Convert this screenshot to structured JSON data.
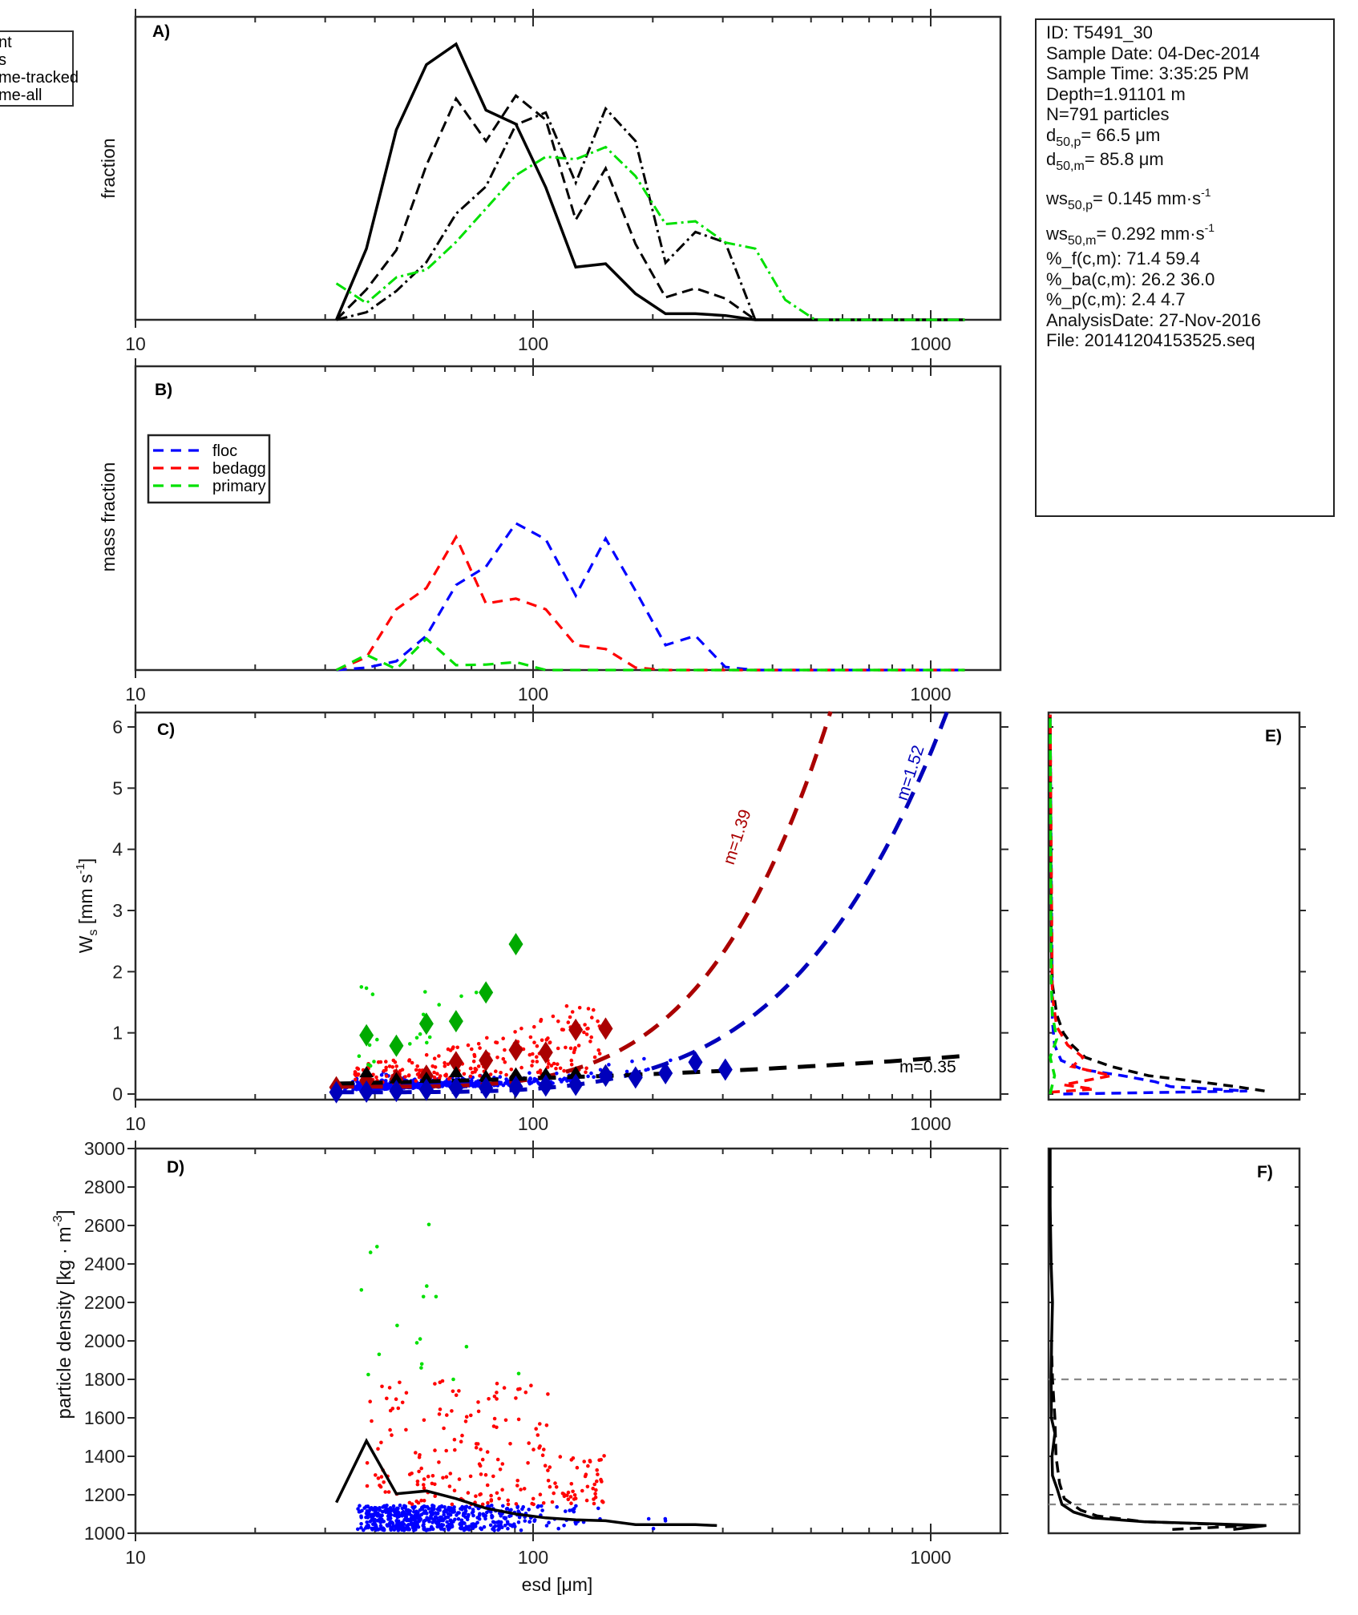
{
  "info_box": {
    "id": "ID: T5491_30",
    "sample_date": "Sample Date: 04-Dec-2014",
    "sample_time": "Sample Time:  3:35:25 PM",
    "depth": "Depth=1.91101 m",
    "n": "N=791 particles",
    "d50p_label": "d",
    "d50p_sub": "50,p",
    "d50p_value": "=  66.5 μm",
    "d50m_label": "d",
    "d50m_sub": "50,m",
    "d50m_value": "=  85.8 μm",
    "ws50p_label": "ws",
    "ws50p_sub": "50,p",
    "ws50p_value": "= 0.145 mm·s",
    "ws50p_sup": "-1",
    "ws50m_label": "ws",
    "ws50m_sub": "50,m",
    "ws50m_value": "= 0.292 mm·s",
    "ws50m_sup": "-1",
    "pct_f": "%_f(c,m): 71.4 59.4",
    "pct_ba": "%_ba(c,m): 26.2 36.0",
    "pct_p": "%_p(c,m): 2.4 4.7",
    "analysis_date": "AnalysisDate: 27-Nov-2016",
    "file": "File: 20141204153525.seq"
  },
  "legend_left": {
    "entries": [
      "nt",
      "s",
      "me-tracked",
      "me-all"
    ]
  },
  "chart_data": [
    {
      "panel": "A)",
      "type": "line",
      "xscale": "log",
      "xlim": [
        10,
        1500
      ],
      "ylim": [
        0,
        1
      ],
      "xlabel": "",
      "ylabel": "fraction",
      "xticklabels": [
        "10",
        "100",
        "1000"
      ],
      "x": [
        32,
        38.1,
        45.3,
        53.9,
        64,
        76.1,
        90.5,
        107.6,
        128,
        152.2,
        181,
        215.3,
        256,
        304.4,
        362,
        430.5,
        512,
        609,
        724,
        861,
        1024,
        1218
      ],
      "series": [
        {
          "name": "nt",
          "style": "solid",
          "color": "#000000",
          "values": [
            0,
            0.235,
            0.627,
            0.842,
            0.91,
            0.692,
            0.646,
            0.437,
            0.174,
            0.185,
            0.086,
            0.02,
            0.02,
            0.014,
            0,
            0,
            0,
            0,
            0,
            0,
            0,
            0
          ]
        },
        {
          "name": "s",
          "style": "dashed",
          "color": "#000000",
          "values": [
            0,
            0.1,
            0.23,
            0.51,
            0.73,
            0.59,
            0.74,
            0.66,
            0.33,
            0.5,
            0.25,
            0.074,
            0.104,
            0.07,
            0,
            0,
            0,
            0,
            0,
            0,
            0,
            0
          ]
        },
        {
          "name": "me-tracked",
          "style": "dashdot",
          "color": "#000000",
          "values": [
            0,
            0.025,
            0.095,
            0.19,
            0.35,
            0.44,
            0.644,
            0.684,
            0.452,
            0.697,
            0.59,
            0.188,
            0.29,
            0.255,
            0,
            0,
            0,
            0,
            0,
            0,
            0,
            0
          ]
        },
        {
          "name": "me-all",
          "style": "dashdot",
          "color": "#00e000",
          "values": [
            0.12,
            0.055,
            0.14,
            0.165,
            0.257,
            0.367,
            0.477,
            0.538,
            0.53,
            0.57,
            0.474,
            0.316,
            0.325,
            0.255,
            0.235,
            0.066,
            0,
            0,
            0,
            0,
            0,
            0
          ]
        }
      ]
    },
    {
      "panel": "B)",
      "type": "line",
      "xscale": "log",
      "xlim": [
        10,
        1500
      ],
      "ylim": [
        0,
        1
      ],
      "ylabel": "mass fraction",
      "xticklabels": [
        "10",
        "100",
        "1000"
      ],
      "legend": {
        "position": "top-left",
        "entries": [
          "floc",
          "bedagg",
          "primary"
        ]
      },
      "x": [
        32,
        38.1,
        45.3,
        53.9,
        64,
        76.1,
        90.5,
        107.6,
        128,
        152.2,
        181,
        215.3,
        256,
        304.4,
        362,
        430.5,
        512,
        609,
        724,
        861,
        1024,
        1218
      ],
      "series": [
        {
          "name": "floc",
          "style": "dashed",
          "color": "#0000ff",
          "values": [
            0,
            0.008,
            0.029,
            0.113,
            0.28,
            0.34,
            0.483,
            0.43,
            0.245,
            0.433,
            0.261,
            0.082,
            0.113,
            0.01,
            0,
            0,
            0,
            0,
            0,
            0,
            0,
            0
          ]
        },
        {
          "name": "bedagg",
          "style": "dashed",
          "color": "#ff0000",
          "values": [
            0,
            0.042,
            0.2,
            0.27,
            0.438,
            0.219,
            0.235,
            0.2,
            0.082,
            0.069,
            0.008,
            0,
            0,
            0,
            0,
            0,
            0,
            0,
            0,
            0,
            0,
            0
          ]
        },
        {
          "name": "primary",
          "style": "dashed",
          "color": "#00e000",
          "values": [
            0,
            0.05,
            0.003,
            0.103,
            0.016,
            0.018,
            0.026,
            0,
            0,
            0,
            0,
            0,
            0,
            0,
            0,
            0,
            0,
            0,
            0,
            0,
            0,
            0
          ]
        }
      ]
    },
    {
      "panel": "C)",
      "type": "scatter",
      "xscale": "log",
      "xlim": [
        10,
        1500
      ],
      "ylim": [
        -0.12,
        6.25
      ],
      "ylabel": "W_s [mm s^-1]",
      "ylabel_main": "W",
      "ylabel_sub": "s",
      "ylabel_rest": " [mm s",
      "ylabel_sup": "-1",
      "ylabel_end": "]",
      "yticks": [
        0,
        1,
        2,
        3,
        4,
        5,
        6
      ],
      "xticklabels": [
        "10",
        "100",
        "1000"
      ],
      "binned": [
        {
          "name": "primary-median",
          "color": "#00aa00",
          "x": [
            38.1,
            45.3,
            53.9,
            64,
            76.1,
            90.5
          ],
          "y": [
            0.96,
            0.79,
            1.15,
            1.19,
            1.66,
            2.45
          ]
        },
        {
          "name": "bedagg-median",
          "color": "#aa0000",
          "x": [
            32,
            38.1,
            45.3,
            53.9,
            64,
            76.1,
            90.5,
            107.6,
            128,
            152.2
          ],
          "y": [
            0.11,
            0.22,
            0.24,
            0.3,
            0.52,
            0.55,
            0.72,
            0.68,
            1.05,
            1.07
          ]
        },
        {
          "name": "all-median",
          "color": "#000000",
          "x": [
            38.1,
            45.3,
            53.9,
            64,
            76.1,
            90.5,
            107.6,
            128,
            152.2
          ],
          "y": [
            0.3,
            0.2,
            0.21,
            0.3,
            0.24,
            0.28,
            0.28,
            0.3,
            0.33
          ]
        },
        {
          "name": "floc-median",
          "color": "#0000bb",
          "x": [
            32,
            38.1,
            45.3,
            53.9,
            64,
            76.1,
            90.5,
            107.6,
            128,
            152.2,
            181,
            215.3,
            256,
            304.4
          ],
          "y": [
            0.03,
            0.04,
            0.05,
            0.07,
            0.1,
            0.1,
            0.12,
            0.14,
            0.15,
            0.3,
            0.27,
            0.34,
            0.52,
            0.4
          ]
        }
      ],
      "fits": [
        {
          "name": "bedagg-fit",
          "label": "m=1.39",
          "color": "#aa0000",
          "x0": 32,
          "x1": 560,
          "y0": 0.12,
          "y1": 6.25
        },
        {
          "name": "floc-fit",
          "label": "m=1.52",
          "color": "#0000bb",
          "x0": 32,
          "x1": 1100,
          "y0": 0.03,
          "y1": 6.25
        },
        {
          "name": "all-fit",
          "label": "m=0.35",
          "color": "#000000",
          "x0": 32,
          "x1": 1250,
          "y0": 0.17,
          "y1": 0.63
        }
      ],
      "scatter_counts": {
        "floc": 560,
        "bedagg": 210,
        "primary": 21
      }
    },
    {
      "panel": "D)",
      "type": "scatter",
      "xscale": "log",
      "xlim": [
        10,
        1500
      ],
      "ylim": [
        1000,
        3000
      ],
      "xlabel": "esd [μm]",
      "ylabel": "particle density [kg · m^-3]",
      "ylabel_text": "particle density [kg · m",
      "ylabel_sup": "-3",
      "ylabel_end": "]",
      "yticks": [
        1000,
        1200,
        1400,
        1600,
        1800,
        2000,
        2200,
        2400,
        2600,
        2800,
        3000
      ],
      "xticklabels": [
        "10",
        "100",
        "1000"
      ],
      "median_line": {
        "x": [
          32,
          38.1,
          45.3,
          53.9,
          64,
          76.1,
          90.5,
          107.6,
          128,
          152.2,
          181,
          215.3,
          256,
          290
        ],
        "y": [
          1160,
          1480,
          1205,
          1220,
          1180,
          1130,
          1100,
          1080,
          1070,
          1065,
          1045,
          1045,
          1045,
          1040
        ]
      },
      "primary_points": [
        [
          37,
          2265
        ],
        [
          39,
          2460
        ],
        [
          40.5,
          2490
        ],
        [
          38.5,
          1825
        ],
        [
          41,
          1930
        ],
        [
          45.5,
          2080
        ],
        [
          51,
          1990
        ],
        [
          53,
          2230
        ],
        [
          54,
          2285
        ],
        [
          52,
          2010
        ],
        [
          52.5,
          1880
        ],
        [
          52.3,
          1860
        ],
        [
          57,
          2230
        ],
        [
          68,
          1970
        ],
        [
          63,
          1800
        ],
        [
          54.7,
          2605
        ],
        [
          92,
          1830
        ]
      ]
    },
    {
      "panel": "E)",
      "type": "line",
      "ylim": [
        -0.12,
        6.25
      ],
      "orientation": "horizontal-histogram",
      "series": [
        {
          "name": "all",
          "color": "#000000",
          "style": "dashed"
        },
        {
          "name": "floc",
          "color": "#0000ff",
          "style": "dashed"
        },
        {
          "name": "bedagg",
          "color": "#ff0000",
          "style": "dashed"
        },
        {
          "name": "primary",
          "color": "#00e000",
          "style": "dashed"
        }
      ]
    },
    {
      "panel": "F)",
      "type": "line",
      "ylim": [
        1000,
        3000
      ],
      "orientation": "horizontal-histogram",
      "reference_lines": [
        1150,
        1800
      ],
      "series": [
        {
          "name": "solid",
          "color": "#000000",
          "style": "solid"
        },
        {
          "name": "dashed",
          "color": "#000000",
          "style": "dashed"
        }
      ]
    }
  ]
}
